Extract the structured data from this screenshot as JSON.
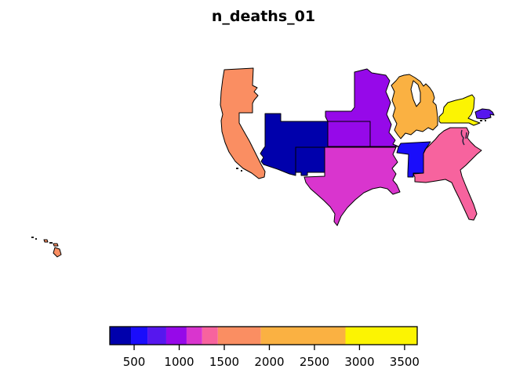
{
  "title": "n_deaths_01",
  "chart_data": {
    "type": "choropleth-map",
    "title": "n_deaths_01",
    "description": "US choropleth of variable n_deaths_01; only regions with data are drawn, others left blank. Hawaii shown as lower-left inset. Continuous blue-to-yellow color scale.",
    "legend": {
      "position": "bottom",
      "orientation": "horizontal",
      "tick_labels": [
        "500",
        "1000",
        "1500",
        "2000",
        "2500",
        "3000",
        "3500"
      ],
      "tick_values": [
        500,
        1000,
        1500,
        2000,
        2500,
        3000,
        3500
      ],
      "value_min": 230,
      "value_max": 3640,
      "bin_edges": [
        230,
        465,
        648,
        856,
        1082,
        1255,
        1429,
        1906,
        2844,
        3640
      ],
      "bin_colors": [
        "#0000AC",
        "#1A0DFB",
        "#5617EE",
        "#9609E9",
        "#D935CE",
        "#F7639E",
        "#FA8E62",
        "#FAB142",
        "#FCF402"
      ]
    },
    "regions": [
      {
        "id": "utah-colorado-arizona",
        "name": "Utah / Colorado / Arizona block",
        "color": "#0000AC",
        "approx_value_range": [
          230,
          465
        ]
      },
      {
        "id": "new-mexico",
        "name": "New Mexico",
        "color": "#0000AC",
        "approx_value_range": [
          230,
          465
        ]
      },
      {
        "id": "tennessee-alabama",
        "name": "Tennessee / Alabama",
        "color": "#1A0DFB",
        "approx_value_range": [
          465,
          648
        ]
      },
      {
        "id": "new-england",
        "name": "Massachusetts / Connecticut / Rhode Island",
        "color": "#5617EE",
        "approx_value_range": [
          648,
          856
        ]
      },
      {
        "id": "plains",
        "name": "Minnesota / Nebraska / Iowa / Missouri",
        "color": "#9609E9",
        "approx_value_range": [
          856,
          1082
        ]
      },
      {
        "id": "kansas",
        "name": "Kansas",
        "color": "#9609E9",
        "approx_value_range": [
          856,
          1082
        ]
      },
      {
        "id": "south-central",
        "name": "Texas / Oklahoma / Arkansas / Louisiana",
        "color": "#D935CE",
        "approx_value_range": [
          1082,
          1255
        ]
      },
      {
        "id": "south-atlantic",
        "name": "Maryland / Virginia / Carolinas / Georgia / Florida",
        "color": "#F7639E",
        "approx_value_range": [
          1255,
          1429
        ]
      },
      {
        "id": "pacific-coast",
        "name": "Washington / Oregon / California",
        "color": "#FA8E62",
        "approx_value_range": [
          1429,
          1906
        ]
      },
      {
        "id": "hawaii",
        "name": "Hawaii",
        "color": "#FA8E62",
        "approx_value_range": [
          1429,
          1906
        ]
      },
      {
        "id": "great-lakes",
        "name": "Wisconsin / Michigan / Illinois / Indiana / Ohio",
        "color": "#FAB142",
        "approx_value_range": [
          1906,
          2844
        ]
      },
      {
        "id": "new-york",
        "name": "New York",
        "color": "#FCF402",
        "approx_value_range": [
          2844,
          3640
        ]
      }
    ]
  }
}
